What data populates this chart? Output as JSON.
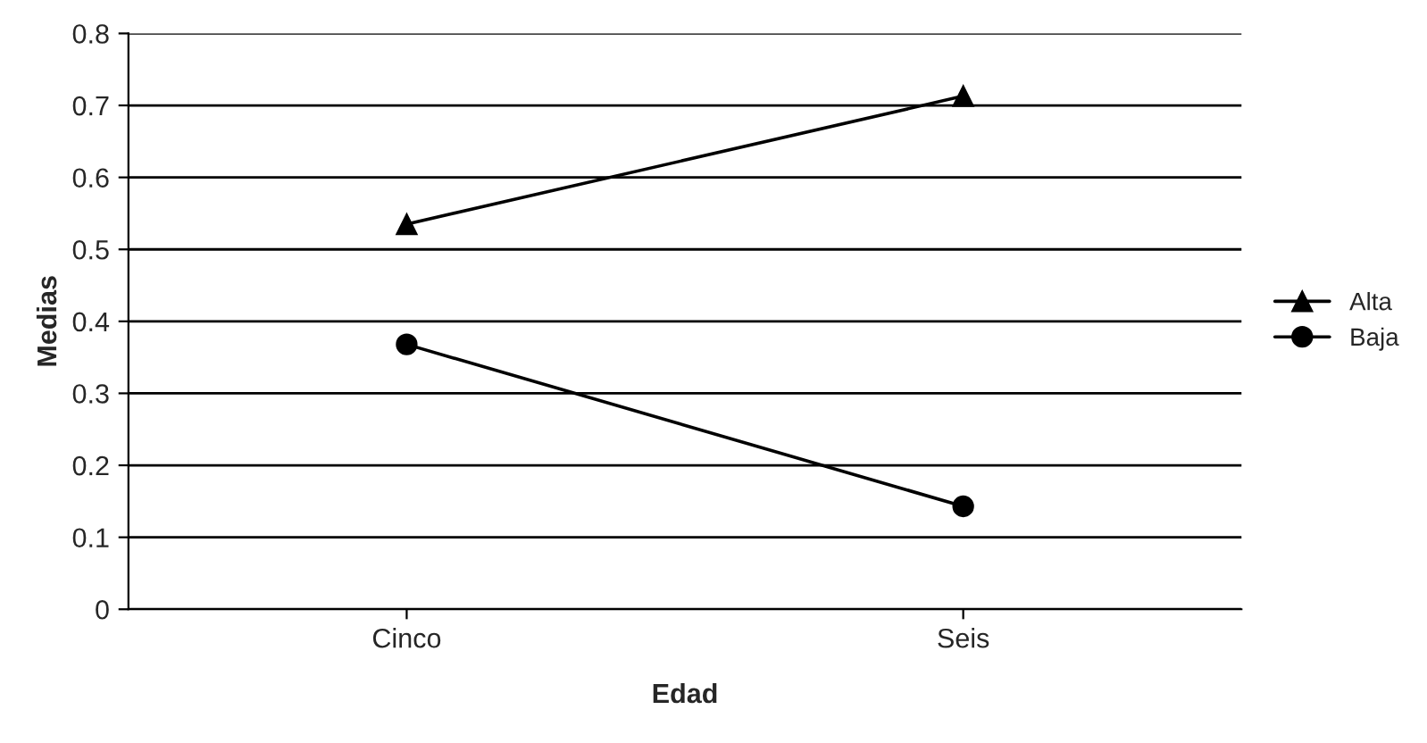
{
  "chart_data": {
    "type": "line",
    "xlabel": "Edad",
    "ylabel": "Medias",
    "categories": [
      "Cinco",
      "Seis"
    ],
    "series": [
      {
        "name": "Alta",
        "color": "#000000",
        "marker": "triangle",
        "values": [
          0.535,
          0.713
        ]
      },
      {
        "name": "Baja",
        "color": "#000000",
        "marker": "circle",
        "values": [
          0.368,
          0.143
        ]
      }
    ],
    "ylim": [
      0,
      0.8
    ],
    "yticks": [
      0,
      0.1,
      0.2,
      0.3,
      0.4,
      0.5,
      0.6,
      0.7,
      0.8
    ],
    "grid": "y",
    "legend": "right",
    "line_style": "solid"
  }
}
